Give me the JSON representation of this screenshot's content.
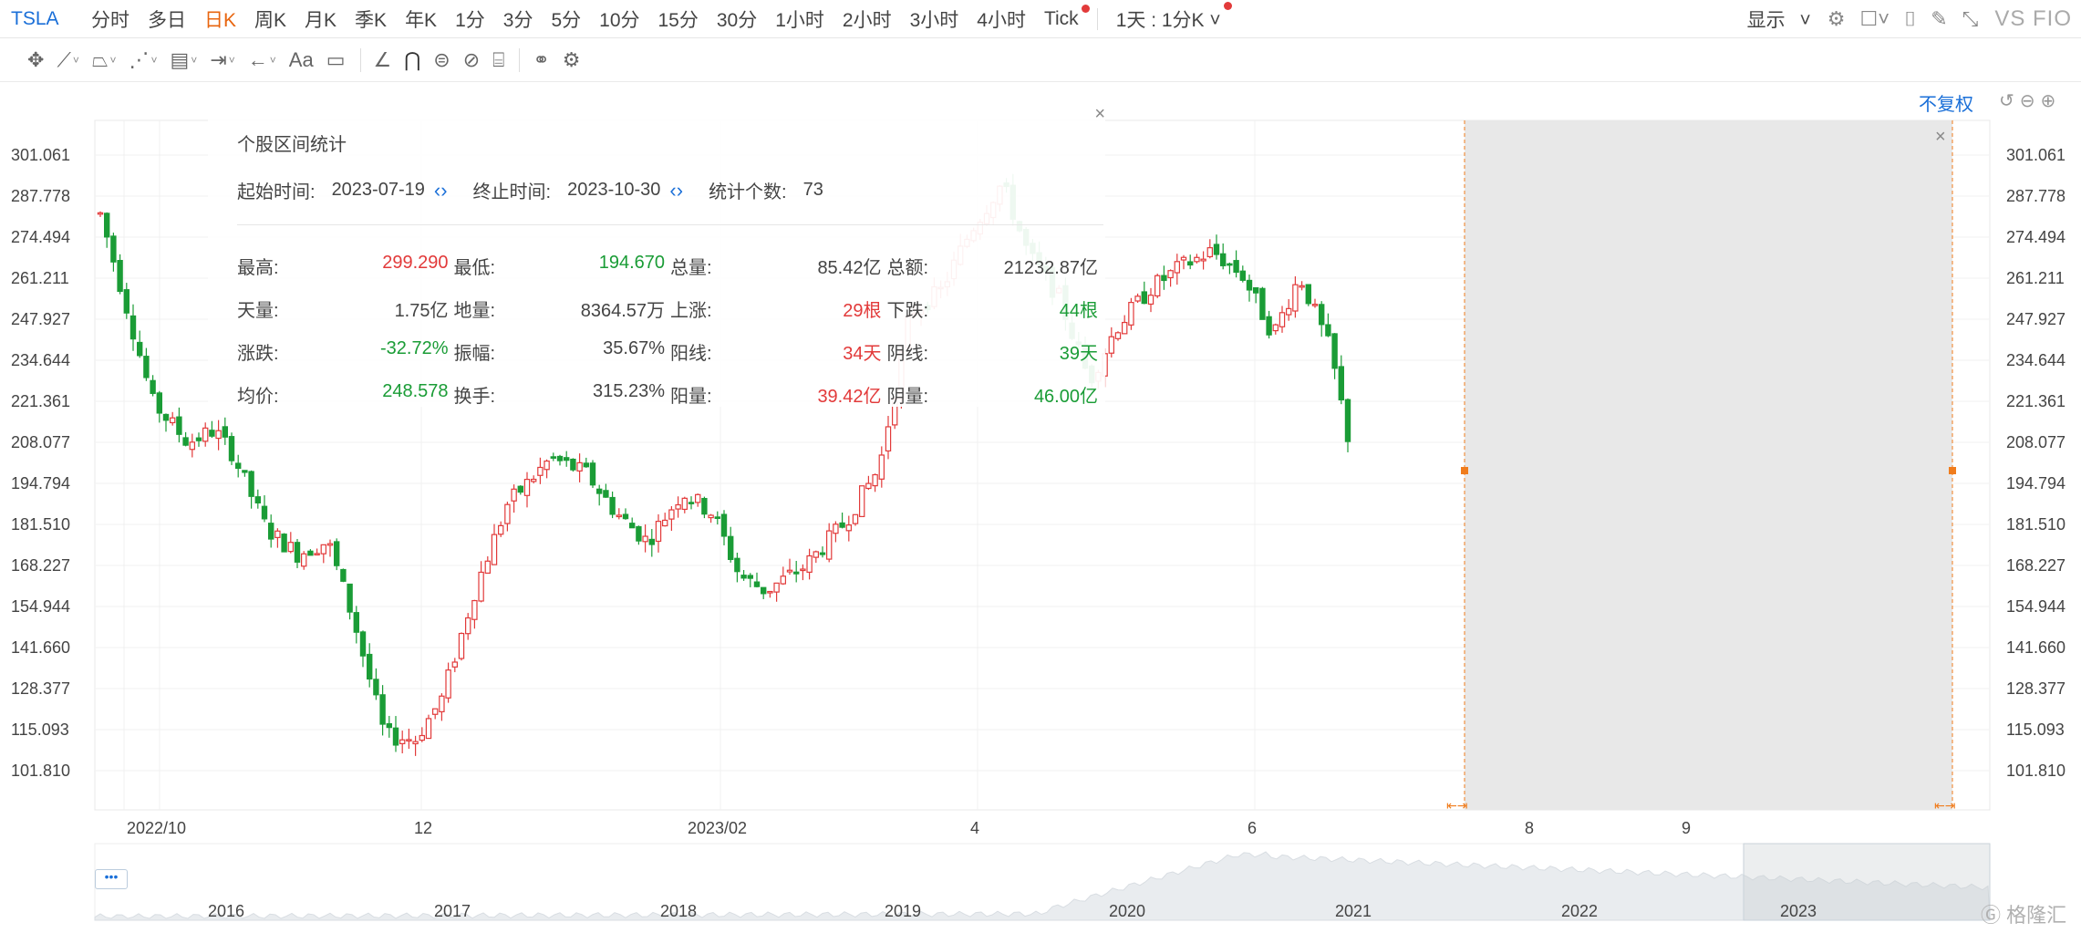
{
  "symbol": "TSLA",
  "periods": [
    {
      "label": "分时",
      "active": false
    },
    {
      "label": "多日",
      "active": false
    },
    {
      "label": "日K",
      "active": true
    },
    {
      "label": "周K",
      "active": false
    },
    {
      "label": "月K",
      "active": false
    },
    {
      "label": "季K",
      "active": false
    },
    {
      "label": "年K",
      "active": false
    },
    {
      "label": "1分",
      "active": false
    },
    {
      "label": "3分",
      "active": false
    },
    {
      "label": "5分",
      "active": false
    },
    {
      "label": "10分",
      "active": false
    },
    {
      "label": "15分",
      "active": false
    },
    {
      "label": "30分",
      "active": false
    },
    {
      "label": "1小时",
      "active": false
    },
    {
      "label": "2小时",
      "active": false
    },
    {
      "label": "3小时",
      "active": false
    },
    {
      "label": "4小时",
      "active": false
    },
    {
      "label": "Tick",
      "active": false
    }
  ],
  "multi_period": "1天 : 1分K",
  "right_controls": {
    "display": "显示",
    "vs": "VS FIO"
  },
  "tools_text": {
    "font": "Aa"
  },
  "restore_mode": "不复权",
  "stats": {
    "title": "个股区间统计",
    "start_label": "起始时间:",
    "start_value": "2023-07-19",
    "end_label": "终止时间:",
    "end_value": "2023-10-30",
    "count_label": "统计个数:",
    "count_value": "73",
    "rows": [
      [
        {
          "k": "最高:",
          "v": "299.290",
          "c": "red"
        },
        {
          "k": "最低:",
          "v": "194.670",
          "c": "green"
        },
        {
          "k": "总量:",
          "v": "85.42亿",
          "c": ""
        },
        {
          "k": "总额:",
          "v": "21232.87亿",
          "c": ""
        }
      ],
      [
        {
          "k": "天量:",
          "v": "1.75亿",
          "c": ""
        },
        {
          "k": "地量:",
          "v": "8364.57万",
          "c": ""
        },
        {
          "k": "上涨:",
          "v": "29根",
          "c": "red"
        },
        {
          "k": "下跌:",
          "v": "44根",
          "c": "green"
        }
      ],
      [
        {
          "k": "涨跌:",
          "v": "-32.72%",
          "c": "green"
        },
        {
          "k": "振幅:",
          "v": "35.67%",
          "c": ""
        },
        {
          "k": "阳线:",
          "v": "34天",
          "c": "red"
        },
        {
          "k": "阴线:",
          "v": "39天",
          "c": "green"
        }
      ],
      [
        {
          "k": "均价:",
          "v": "248.578",
          "c": "green"
        },
        {
          "k": "换手:",
          "v": "315.23%",
          "c": ""
        },
        {
          "k": "阳量:",
          "v": "39.42亿",
          "c": "red"
        },
        {
          "k": "阴量:",
          "v": "46.00亿",
          "c": "green"
        }
      ]
    ]
  },
  "chart_data": {
    "type": "candlestick",
    "y_ticks": [
      "301.061",
      "287.778",
      "274.494",
      "261.211",
      "247.927",
      "234.644",
      "221.361",
      "208.077",
      "194.794",
      "181.510",
      "168.227",
      "154.944",
      "141.660",
      "128.377",
      "115.093",
      "101.810"
    ],
    "ylim": [
      95.17,
      304.0
    ],
    "x_labels": [
      "2022/10",
      "12",
      "2023/02",
      "4",
      "6",
      "8",
      "9"
    ],
    "colors": {
      "up": "#e23a3a",
      "down": "#1a9c36",
      "selection": "#e8e8e8",
      "marker": "#f07c1c"
    },
    "selection": {
      "start": "2023-07-19",
      "end": "2023-10-30"
    },
    "overview_years": [
      "2016",
      "2017",
      "2018",
      "2019",
      "2020",
      "2021",
      "2022",
      "2023"
    ]
  },
  "watermark": "格隆汇"
}
